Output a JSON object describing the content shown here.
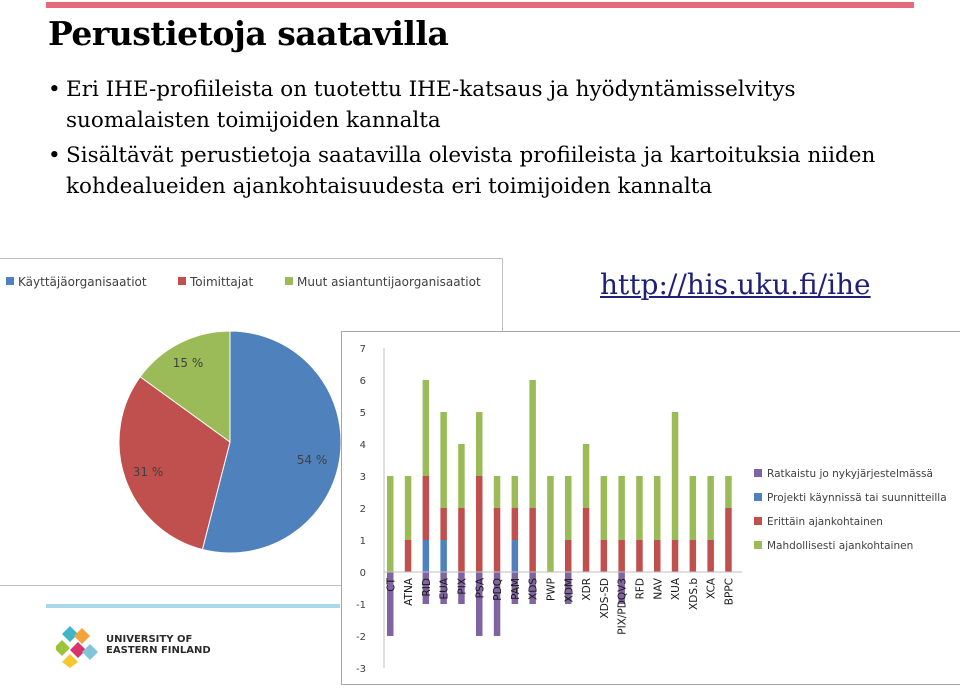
{
  "slide": {
    "title": "Perustietoja saatavilla",
    "bullets": [
      "Eri IHE-profiileista on tuotettu IHE-katsaus ja hyödyntämisselvitys suomalaisten toimijoiden kannalta",
      "Sisältävät perustietoja saatavilla olevista profiileista ja kartoituksia niiden kohdealueiden ajankohtaisuudesta eri toimijoiden kannalta"
    ],
    "link": "http://his.uku.fi/ihe",
    "accent_color": "#e46a7c",
    "logo": {
      "line1": "UNIVERSITY OF",
      "line2": "EASTERN FINLAND"
    }
  },
  "chart_data": [
    {
      "type": "pie",
      "legend_position": "top",
      "slices": [
        {
          "label": "Käyttäjäorganisaatiot",
          "value": 54,
          "data_label": "54 %",
          "color": "#4f81bd"
        },
        {
          "label": "Toimittajat",
          "value": 31,
          "data_label": "31 %",
          "color": "#c0504d"
        },
        {
          "label": "Muut asiantuntijaorganisaatiot",
          "value": 15,
          "data_label": "15 %",
          "color": "#9bbb59"
        }
      ]
    },
    {
      "type": "bar",
      "stacked": true,
      "legend_position": "right",
      "ylim": [
        -3,
        7
      ],
      "yticks": [
        -3,
        -2,
        -1,
        0,
        1,
        2,
        3,
        4,
        5,
        6,
        7
      ],
      "grid": false,
      "categories": [
        "CT",
        "ATNA",
        "RID",
        "EUA",
        "PIX",
        "PSA",
        "PDQ",
        "PAM",
        "XDS",
        "PWP",
        "XDM",
        "XDR",
        "XDS-SD",
        "PIX/PDQV3",
        "RFD",
        "NAV",
        "XUA",
        "XDS.b",
        "XCA",
        "BPPC"
      ],
      "series": [
        {
          "name": "Ratkaistu jo nykyjärjestelmässä",
          "color": "#8064a2",
          "values": [
            -2,
            0,
            -1,
            -1,
            -1,
            -2,
            -2,
            -1,
            -1,
            0,
            -1,
            0,
            0,
            -1,
            0,
            0,
            0,
            0,
            0,
            0
          ]
        },
        {
          "name": "Projekti käynnissä tai suunnitteilla",
          "color": "#4f81bd",
          "values": [
            0,
            0,
            1,
            1,
            0,
            0,
            0,
            1,
            0,
            0,
            0,
            0,
            0,
            0,
            0,
            0,
            0,
            0,
            0,
            0
          ]
        },
        {
          "name": "Erittäin ajankohtainen",
          "color": "#c0504d",
          "values": [
            0,
            1,
            2,
            1,
            2,
            3,
            2,
            1,
            2,
            0,
            1,
            2,
            1,
            1,
            1,
            1,
            1,
            1,
            1,
            2
          ]
        },
        {
          "name": "Mahdollisesti ajankohtainen",
          "color": "#9bbb59",
          "values": [
            3,
            2,
            3,
            3,
            2,
            2,
            1,
            1,
            4,
            3,
            2,
            2,
            2,
            2,
            2,
            2,
            4,
            2,
            2,
            1
          ]
        }
      ]
    }
  ]
}
